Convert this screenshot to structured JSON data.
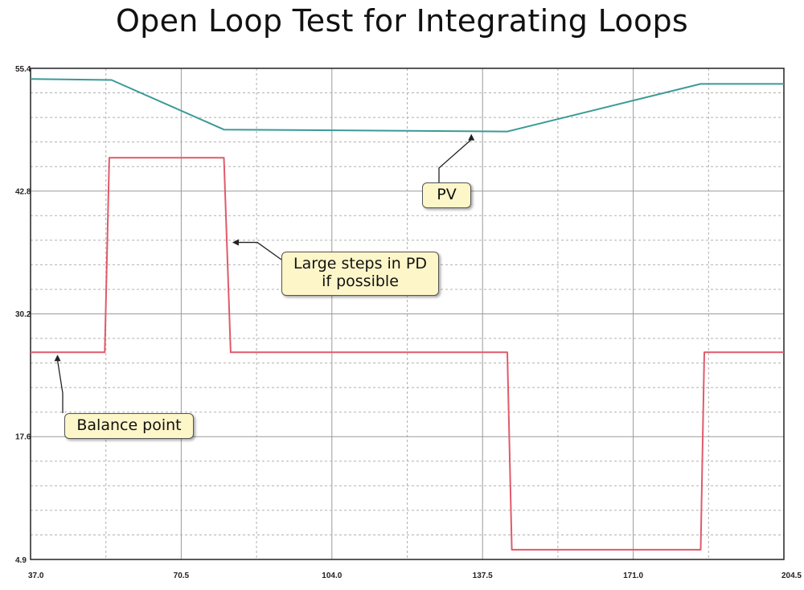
{
  "chart_data": {
    "type": "line",
    "title": "Open Loop Test for Integrating Loops",
    "xlabel": "",
    "ylabel": "",
    "xlim": [
      37.0,
      204.5
    ],
    "ylim": [
      4.9,
      55.4
    ],
    "x_ticks": [
      "37.0",
      "70.5",
      "104.0",
      "137.5",
      "171.0",
      "204.5"
    ],
    "y_ticks": [
      "4.9",
      "17.6",
      "30.2",
      "42.8",
      "55.4"
    ],
    "grid": true,
    "series": [
      {
        "color": "#3a9a97",
        "points": [
          [
            37.0,
            54.3
          ],
          [
            55.0,
            54.2
          ],
          [
            80.0,
            49.1
          ],
          [
            143.0,
            48.9
          ],
          [
            186.0,
            53.8
          ],
          [
            204.5,
            53.8
          ]
        ]
      },
      {
        "color": "#e05a6a",
        "points": [
          [
            37.0,
            26.2
          ],
          [
            53.5,
            26.2
          ],
          [
            54.5,
            46.2
          ],
          [
            80.0,
            46.2
          ],
          [
            81.5,
            26.2
          ],
          [
            143.0,
            26.2
          ],
          [
            144.0,
            5.9
          ],
          [
            186.0,
            5.9
          ],
          [
            186.8,
            26.2
          ],
          [
            204.5,
            26.2
          ]
        ]
      }
    ],
    "annotations": [
      {
        "text": [
          "PV"
        ],
        "target": [
          135.0,
          48.9
        ]
      },
      {
        "text": [
          "Large steps in PD",
          "if possible"
        ],
        "target": [
          81.5,
          37.5
        ]
      },
      {
        "text": [
          "Balance point"
        ],
        "target": [
          43.0,
          26.2
        ]
      }
    ]
  },
  "colors": {
    "callout_fill": "#fdf6c9",
    "grid_solid": "#9a9a9a",
    "grid_dashed": "#b0b0b0"
  }
}
